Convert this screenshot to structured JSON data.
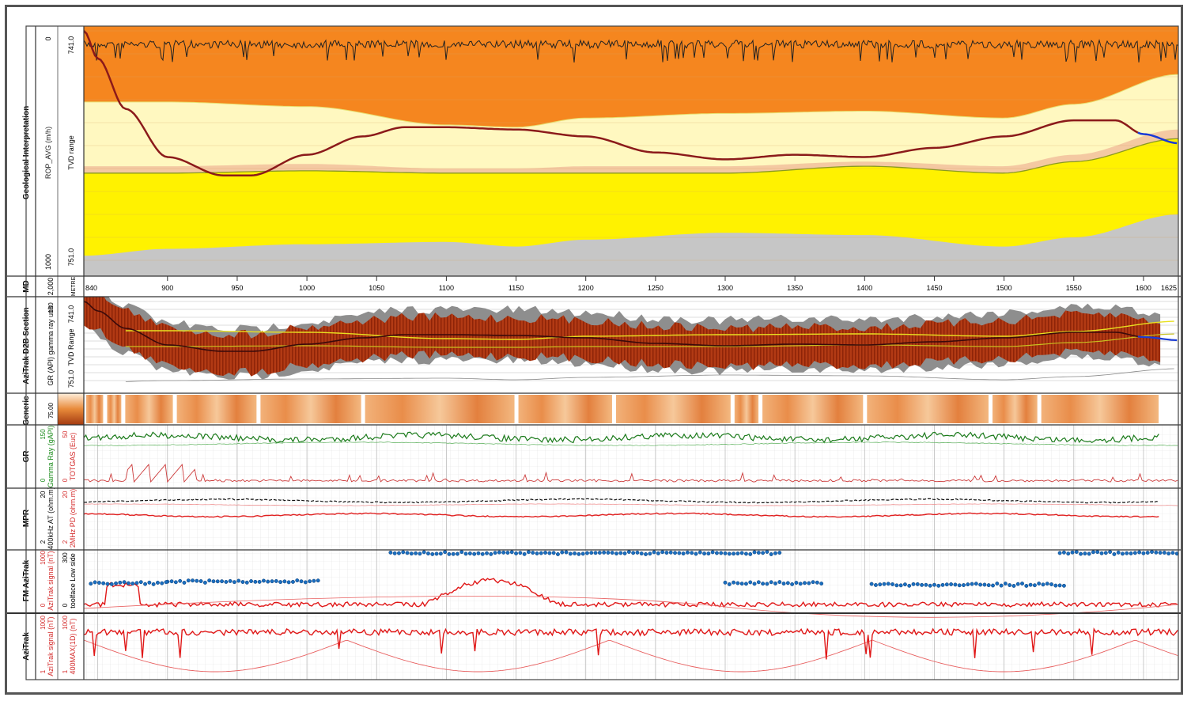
{
  "tracks": {
    "geo": {
      "label": "Geological Interpretation",
      "curve_label": "ROP_AVG (m/h)",
      "scale_top": "0",
      "scale_bottom": "1000",
      "range_label": "TVD range",
      "range_top": "741.0",
      "range_bottom": "751.0"
    },
    "md": {
      "label": "MD",
      "unit": "METRE",
      "left_value": "2,000"
    },
    "d2b": {
      "label": "AziTrak D2B Section",
      "curve_label": "GR (API) gamma ray unit",
      "scale_top": "150",
      "range_label": "TVD Range",
      "range_top": "741.0",
      "range_bottom": "751.0"
    },
    "generic": {
      "label": "Generic",
      "scale": "75.00"
    },
    "gr": {
      "label": "GR",
      "c1_label": "Gamma Ray (gAPI)",
      "c1_top": "150",
      "c1_bottom": "0",
      "c2_label": "TOTGAS (Euc)",
      "c2_top": "50",
      "c2_bottom": "0"
    },
    "mpr": {
      "label": "MPR",
      "c1_label": "400kHz AT (ohm.m)",
      "c1_top": "20",
      "c1_bottom": "2",
      "c2_label": "2MHz PD (ohm.m)",
      "c2_top": "20",
      "c2_bottom": "2"
    },
    "fm": {
      "label": "FM AziTrak",
      "c1_label": "AziTrak signal (nT)",
      "c1_top": "1000",
      "c1_bottom": "0",
      "c2_label": "toolface Low side",
      "c2_top": "300",
      "c2_bottom": "0"
    },
    "azi": {
      "label": "AziTrak",
      "c1_label": "AziTrak signal (nT)",
      "c1_top": "1000",
      "c1_bottom": "1",
      "c2_label": "400MAX(1D) (nT)",
      "c2_top": "1000",
      "c2_bottom": "1"
    }
  },
  "chart_data": {
    "type": "line",
    "x_axis": {
      "label": "MD",
      "unit": "METRE",
      "min": 840,
      "max": 1625,
      "ticks": [
        840,
        900,
        950,
        1000,
        1050,
        1100,
        1150,
        1200,
        1250,
        1300,
        1350,
        1400,
        1450,
        1500,
        1550,
        1600,
        1625
      ]
    },
    "wellbore_tvd": {
      "md": [
        840,
        850,
        870,
        900,
        940,
        960,
        1000,
        1040,
        1070,
        1100,
        1150,
        1200,
        1250,
        1300,
        1350,
        1400,
        1450,
        1500,
        1550,
        1580,
        1600,
        1625
      ],
      "tvd": [
        741.0,
        742.2,
        744.4,
        746.5,
        747.3,
        747.3,
        746.4,
        745.6,
        745.2,
        745.2,
        745.3,
        745.6,
        746.3,
        746.6,
        746.4,
        746.5,
        746.1,
        745.6,
        744.9,
        744.9,
        745.5,
        745.9
      ]
    },
    "layers_tvd": {
      "md": [
        840,
        900,
        1000,
        1100,
        1150,
        1200,
        1300,
        1400,
        1500,
        1550,
        1625
      ],
      "orange_base": [
        744.1,
        744.1,
        744.3,
        745.1,
        745.2,
        744.8,
        744.6,
        744.5,
        744.8,
        744.2,
        742.9
      ],
      "peach_top": [
        746.9,
        746.9,
        746.8,
        747.0,
        747.0,
        746.9,
        746.9,
        746.7,
        746.9,
        746.4,
        745.3
      ],
      "yellow_top": [
        747.2,
        747.2,
        747.1,
        747.2,
        747.2,
        747.2,
        747.2,
        746.9,
        747.2,
        746.7,
        745.7
      ],
      "gray_top": [
        750.8,
        750.5,
        750.3,
        750.2,
        750.4,
        750.1,
        749.8,
        749.9,
        750.4,
        750.0,
        749.0
      ]
    }
  }
}
